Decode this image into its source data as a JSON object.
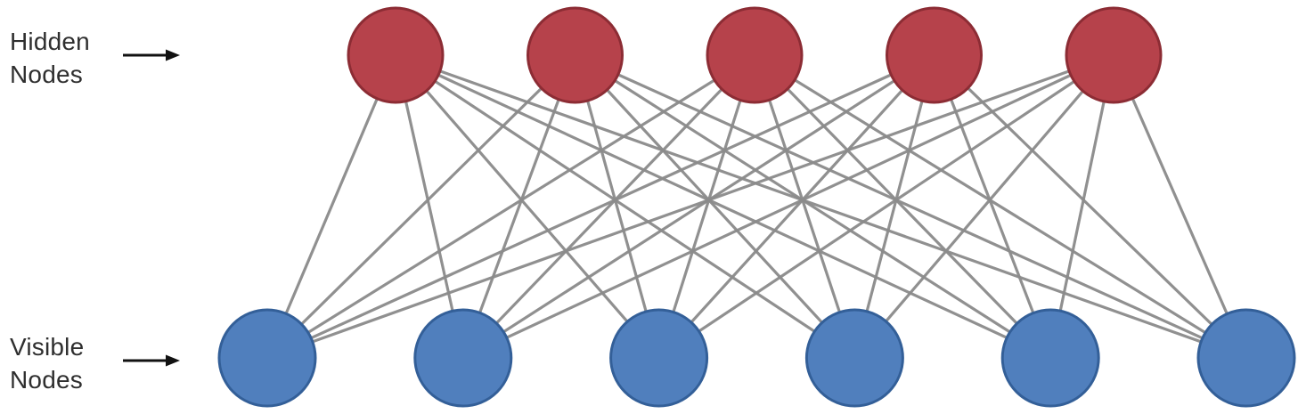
{
  "labels": {
    "hidden": [
      "Hidden",
      "Nodes"
    ],
    "visible": [
      "Visible",
      "Nodes"
    ]
  },
  "icons": {
    "hidden_arrow": "arrow-right-icon",
    "visible_arrow": "arrow-right-icon"
  },
  "network": {
    "hidden_node_count": 5,
    "visible_node_count": 6,
    "connectivity": "fully connected"
  },
  "colors": {
    "hidden_fill": "#b6424b",
    "hidden_stroke": "#8c2c34",
    "visible_fill": "#507fbd",
    "visible_stroke": "#335f98",
    "edge": "#8b8b8b",
    "text": "#2f2f2f"
  }
}
